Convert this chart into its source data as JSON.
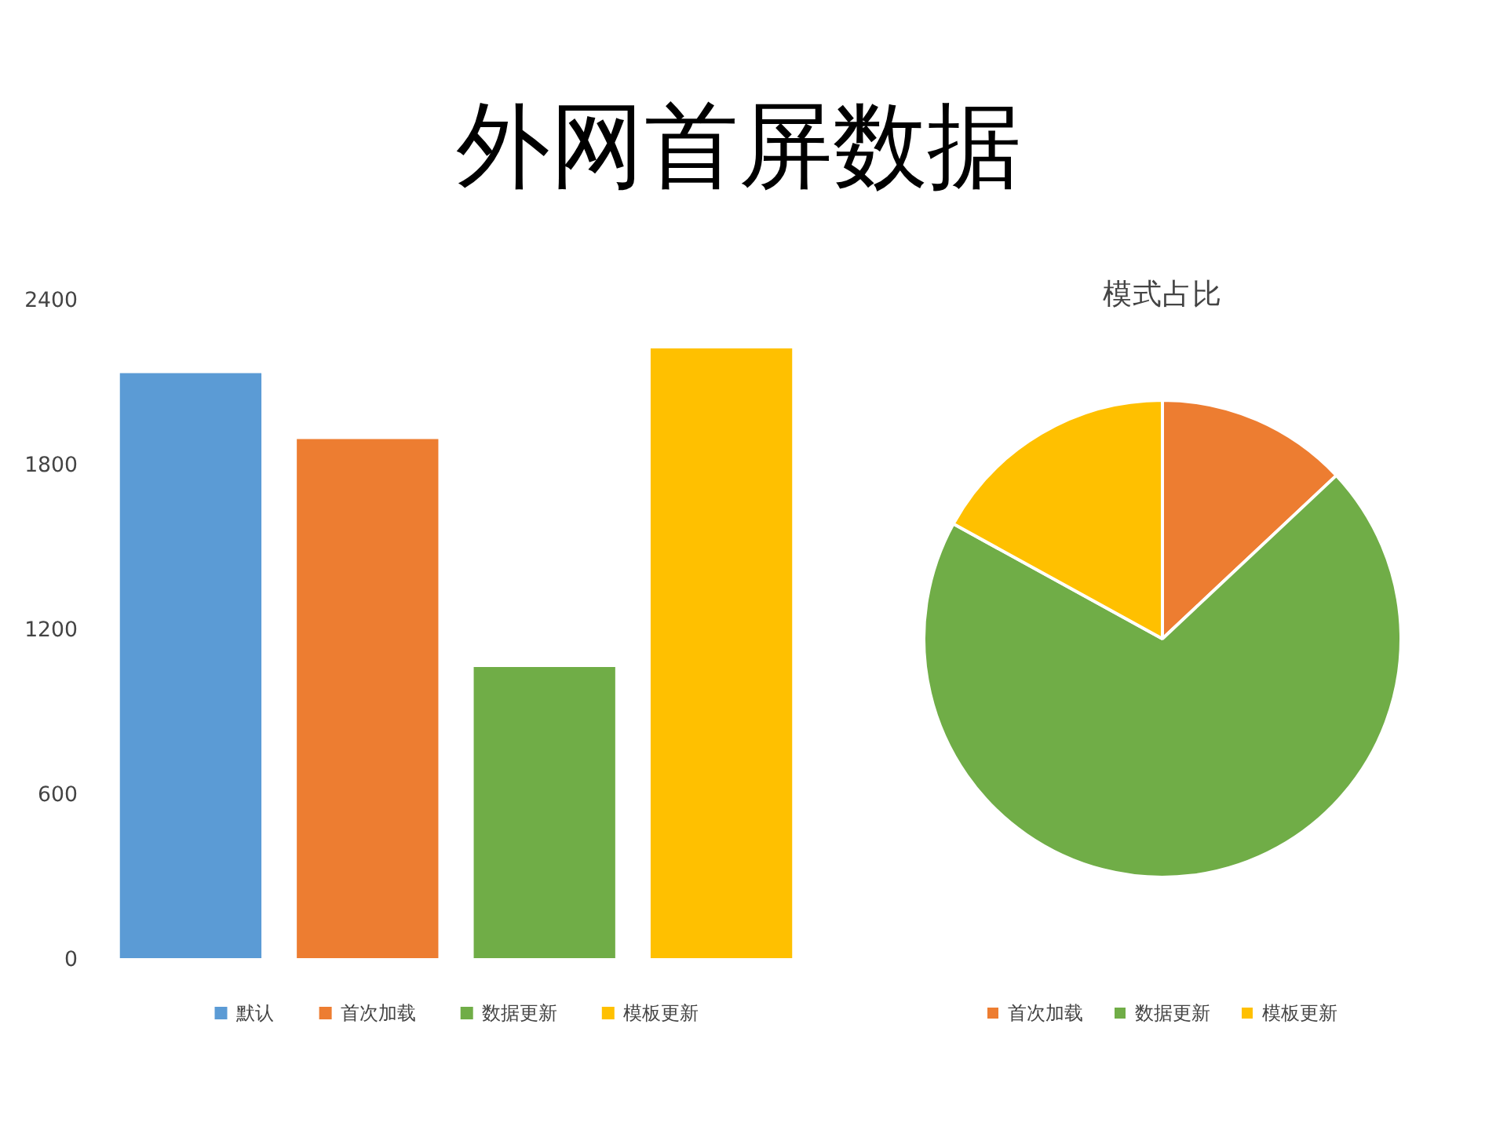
{
  "chart_data": [
    {
      "type": "bar",
      "title": "外网首屏数据",
      "categories": [
        null
      ],
      "series": [
        {
          "name": "默认",
          "color": "#5b9bd5",
          "values": [
            2130
          ]
        },
        {
          "name": "首次加载",
          "color": "#ed7d31",
          "values": [
            1890
          ]
        },
        {
          "name": "数据更新",
          "color": "#70ad47",
          "values": [
            1060
          ]
        },
        {
          "name": "模板更新",
          "color": "#ffc000",
          "values": [
            2220
          ]
        }
      ],
      "ylim": [
        0,
        2400
      ],
      "yticks": [
        0,
        600,
        1200,
        1800,
        2400
      ],
      "grid": false,
      "legend": "bottom",
      "tick_labels": "y"
    },
    {
      "type": "pie",
      "title": "模式占比",
      "categories": [
        "首次加载",
        "数据更新",
        "模板更新"
      ],
      "values": [
        13,
        70,
        17
      ],
      "colors": [
        "#ed7d31",
        "#70ad47",
        "#ffc000"
      ],
      "legend": "bottom"
    }
  ]
}
